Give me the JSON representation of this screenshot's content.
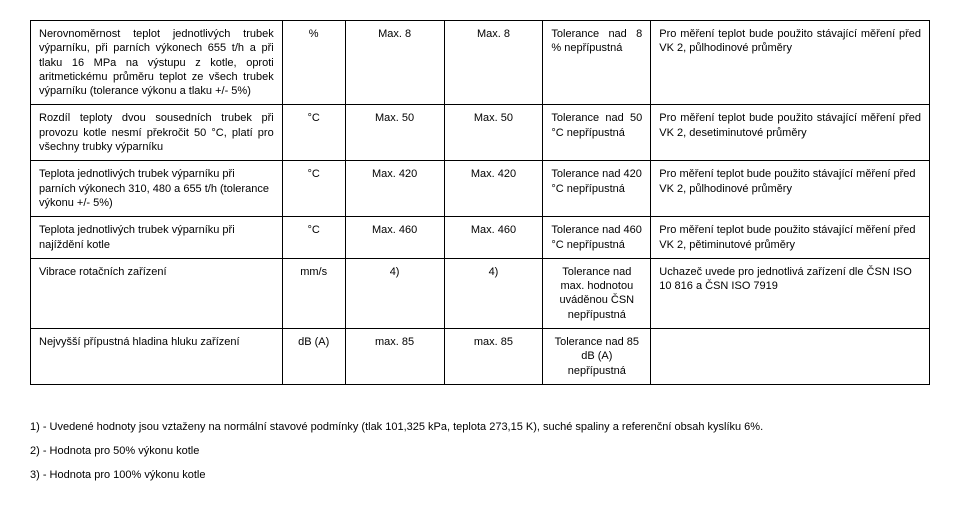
{
  "table": {
    "rows": [
      {
        "desc": "Nerovnoměrnost teplot jednotlivých trubek výparníku, při parních výkonech 655 t/h a při tlaku 16 MPa na výstupu z kotle, oproti aritmetickému průměru teplot ze všech trubek výparníku (tolerance výkonu a tlaku +/- 5%)",
        "unit": "%",
        "val1": "Max. 8",
        "val2": "Max. 8",
        "tol": "Tolerance nad 8 % nepřípustná",
        "note": "Pro měření teplot bude použito stávající měření před VK 2, půlhodinové průměry"
      },
      {
        "desc": "Rozdíl teploty dvou sousedních trubek při provozu kotle nesmí překročit 50 °C, platí pro všechny trubky výparníku",
        "unit": "°C",
        "val1": "Max. 50",
        "val2": "Max. 50",
        "tol": "Tolerance nad 50 °C nepřípustná",
        "note": "Pro měření teplot bude použito stávající měření před VK 2, desetiminutové průměry"
      },
      {
        "desc": "Teplota jednotlivých trubek výparníku při parních výkonech 310, 480 a 655 t/h (tolerance výkonu +/- 5%)",
        "unit": "°C",
        "val1": "Max. 420",
        "val2": "Max. 420",
        "tol": "Tolerance nad 420 °C nepřípustná",
        "note": "Pro měření teplot bude použito stávající měření před VK 2, půlhodinové průměry"
      },
      {
        "desc": "Teplota jednotlivých trubek výparníku při najíždění kotle",
        "unit": "°C",
        "val1": "Max. 460",
        "val2": "Max. 460",
        "tol": "Tolerance nad 460 °C nepřípustná",
        "note": "Pro měření teplot bude použito stávající měření před VK 2, pětiminutové průměry"
      },
      {
        "desc": "Vibrace rotačních zařízení",
        "unit": "mm/s",
        "val1": "4)",
        "val2": "4)",
        "tol": "Tolerance nad max. hodnotou uváděnou ČSN nepřípustná",
        "note": "Uchazeč uvede pro jednotlivá zařízení dle ČSN ISO 10 816 a ČSN ISO 7919"
      },
      {
        "desc": "Nejvyšší přípustná hladina hluku zařízení",
        "unit": "dB (A)",
        "val1": "max. 85",
        "val2": "max. 85",
        "tol": "Tolerance nad 85 dB (A) nepřípustná",
        "note": ""
      }
    ]
  },
  "footnotes": {
    "f1": "1) - Uvedené hodnoty jsou vztaženy na normální stavové podmínky (tlak 101,325 kPa, teplota 273,15 K), suché spaliny a referenční obsah kyslíku 6%.",
    "f2": "2) -  Hodnota pro 50% výkonu kotle",
    "f3": "3) -  Hodnota pro 100% výkonu kotle"
  }
}
